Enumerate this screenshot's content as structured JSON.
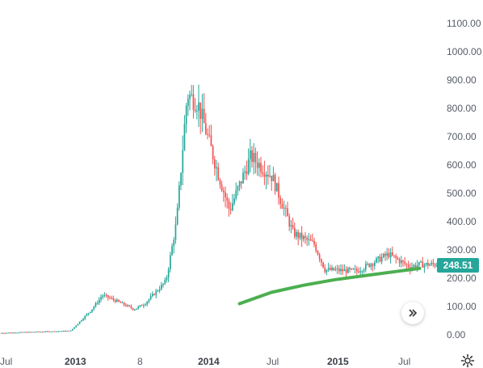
{
  "chart_data": {
    "type": "candlestick",
    "y_ticks": [
      "1100.00",
      "1000.00",
      "900.00",
      "800.00",
      "700.00",
      "600.00",
      "500.00",
      "400.00",
      "300.00",
      "200.00",
      "100.00",
      "0.00"
    ],
    "ylim": [
      0,
      1180
    ],
    "x_ticks": [
      {
        "label": "Jul",
        "bold": false
      },
      {
        "label": "2013",
        "bold": true
      },
      {
        "label": "8",
        "bold": false
      },
      {
        "label": "2014",
        "bold": true
      },
      {
        "label": "Jul",
        "bold": false
      },
      {
        "label": "2015",
        "bold": true
      },
      {
        "label": "Jul",
        "bold": false
      }
    ],
    "last_price": "248.51",
    "up_color": "#26a69a",
    "down_color": "#ef5350",
    "ma_color": "#4caf50",
    "candles_weekly_close_sample": [
      {
        "t": "2012-06",
        "c": 6
      },
      {
        "t": "2012-10",
        "c": 11
      },
      {
        "t": "2013-01",
        "c": 14
      },
      {
        "t": "2013-03",
        "c": 90
      },
      {
        "t": "2013-04",
        "c": 140
      },
      {
        "t": "2013-05",
        "c": 125
      },
      {
        "t": "2013-07",
        "c": 90
      },
      {
        "t": "2013-08",
        "c": 110
      },
      {
        "t": "2013-10",
        "c": 190
      },
      {
        "t": "2013-11",
        "c": 400
      },
      {
        "t": "2013-12",
        "c": 850
      },
      {
        "t": "2014-01",
        "c": 820
      },
      {
        "t": "2014-03",
        "c": 560
      },
      {
        "t": "2014-04",
        "c": 440
      },
      {
        "t": "2014-06",
        "c": 630
      },
      {
        "t": "2014-08",
        "c": 560
      },
      {
        "t": "2014-10",
        "c": 360
      },
      {
        "t": "2014-12",
        "c": 320
      },
      {
        "t": "2015-01",
        "c": 230
      },
      {
        "t": "2015-04",
        "c": 225
      },
      {
        "t": "2015-07",
        "c": 285
      },
      {
        "t": "2015-09",
        "c": 240
      },
      {
        "t": "2015-10",
        "c": 248.51
      }
    ],
    "moving_average": [
      {
        "t": "2014-05",
        "v": 110
      },
      {
        "t": "2014-08",
        "v": 150
      },
      {
        "t": "2014-11",
        "v": 175
      },
      {
        "t": "2015-02",
        "v": 195
      },
      {
        "t": "2015-05",
        "v": 210
      },
      {
        "t": "2015-08",
        "v": 225
      },
      {
        "t": "2015-10",
        "v": 235
      }
    ]
  },
  "controls": {
    "scroll_icon": "double-chevron-right-icon",
    "settings_icon": "gear-icon"
  }
}
